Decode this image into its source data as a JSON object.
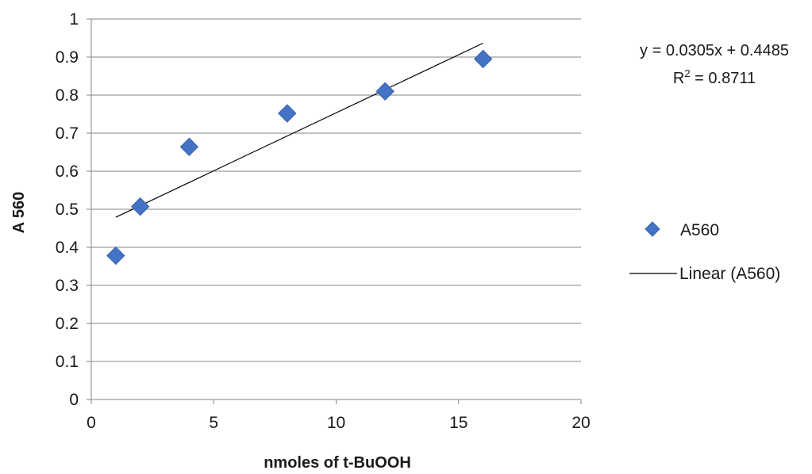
{
  "chart_data": {
    "type": "scatter",
    "xlabel": "nmoles of t-BuOOH",
    "ylabel": "A 560",
    "xlim": [
      0,
      20
    ],
    "ylim": [
      0,
      1
    ],
    "x_ticks": [
      0,
      5,
      10,
      15,
      20
    ],
    "y_ticks": [
      0,
      0.1,
      0.2,
      0.3,
      0.4,
      0.5,
      0.6,
      0.7,
      0.8,
      0.9,
      1
    ],
    "x_tick_labels": [
      "0",
      "5",
      "10",
      "15",
      "20"
    ],
    "y_tick_labels": [
      "0",
      "0.1",
      "0.2",
      "0.3",
      "0.4",
      "0.5",
      "0.6",
      "0.7",
      "0.8",
      "0.9",
      "1"
    ],
    "grid": "horizontal",
    "series": [
      {
        "name": "A560",
        "marker": "diamond",
        "color": "#4472c4",
        "x": [
          1,
          2,
          4,
          8,
          12,
          16
        ],
        "y": [
          0.378,
          0.507,
          0.664,
          0.752,
          0.81,
          0.895
        ]
      }
    ],
    "trendline": {
      "name": "Linear (A560)",
      "color": "#000000",
      "slope": 0.0305,
      "intercept": 0.4485,
      "x_range": [
        1,
        16
      ],
      "equation": "y = 0.0305x + 0.4485",
      "r_squared_prefix": "R",
      "r_squared_exp": "2",
      "r_squared_value": " = 0.8711"
    },
    "legend_position": "right"
  }
}
